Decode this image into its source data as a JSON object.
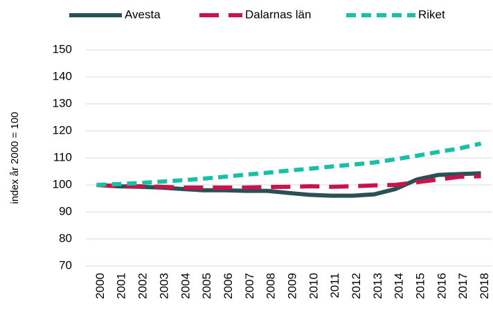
{
  "chart_data": {
    "type": "line",
    "categories": [
      "2000",
      "2001",
      "2002",
      "2003",
      "2004",
      "2005",
      "2006",
      "2007",
      "2008",
      "2009",
      "2010",
      "2011",
      "2012",
      "2013",
      "2014",
      "2015",
      "2016",
      "2017",
      "2018"
    ],
    "series": [
      {
        "name": "Avesta",
        "color": "#2a5156",
        "dash": "solid",
        "values": [
          100,
          99.5,
          99.3,
          99,
          98.5,
          98,
          98,
          97.8,
          97.8,
          97,
          96.3,
          96,
          96,
          96.5,
          98.5,
          102,
          103.7,
          104,
          104.3
        ]
      },
      {
        "name": "Dalarnas län",
        "color": "#c8144a",
        "dash": "long-dash",
        "values": [
          100,
          99.5,
          99.5,
          99.3,
          99,
          99,
          99,
          99,
          99.2,
          99.3,
          99.5,
          99.3,
          99.5,
          99.8,
          100,
          101,
          102,
          103,
          103.2
        ]
      },
      {
        "name": "Riket",
        "color": "#19c0a5",
        "dash": "dash",
        "values": [
          100,
          100.3,
          100.7,
          101.2,
          101.7,
          102.3,
          103,
          103.8,
          104.5,
          105.3,
          106,
          106.8,
          107.5,
          108.3,
          109.5,
          110.8,
          112.2,
          113.5,
          115.3
        ]
      }
    ],
    "y_label": "index år 2000 = 100",
    "ylim": [
      70,
      150
    ],
    "yticks": [
      70,
      80,
      90,
      100,
      110,
      120,
      130,
      140,
      150
    ],
    "grid": true,
    "legend": "top"
  }
}
